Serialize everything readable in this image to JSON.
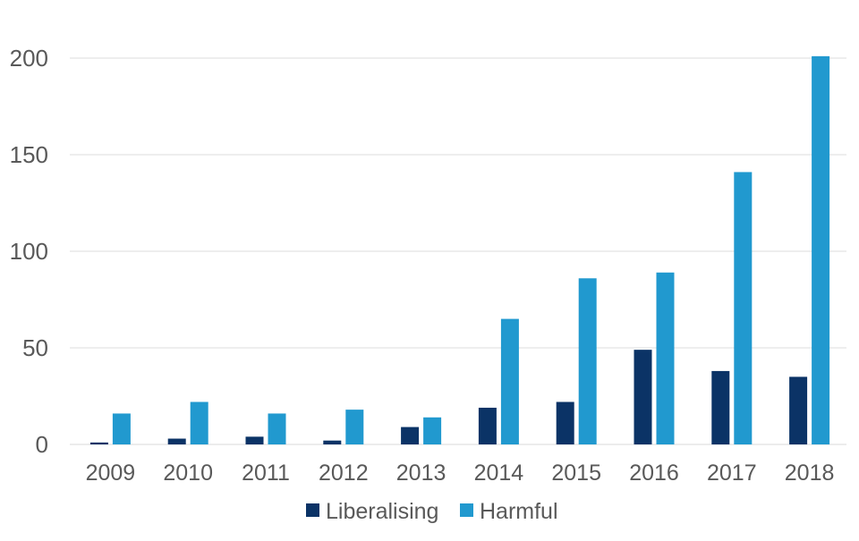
{
  "chart_data": {
    "type": "bar",
    "title": "",
    "xlabel": "",
    "ylabel": "",
    "categories": [
      "2009",
      "2010",
      "2011",
      "2012",
      "2013",
      "2014",
      "2015",
      "2016",
      "2017",
      "2018"
    ],
    "series": [
      {
        "name": "Liberalising",
        "color": "#0b3366",
        "values": [
          1,
          3,
          4,
          2,
          9,
          19,
          22,
          49,
          38,
          35
        ]
      },
      {
        "name": "Harmful",
        "color": "#2199cf",
        "values": [
          16,
          22,
          16,
          18,
          14,
          65,
          86,
          89,
          141,
          201
        ]
      }
    ],
    "ylim": [
      0,
      200
    ],
    "yticks": [
      "0",
      "50",
      "100",
      "150",
      "200"
    ],
    "grid": true,
    "legend_position": "bottom"
  }
}
